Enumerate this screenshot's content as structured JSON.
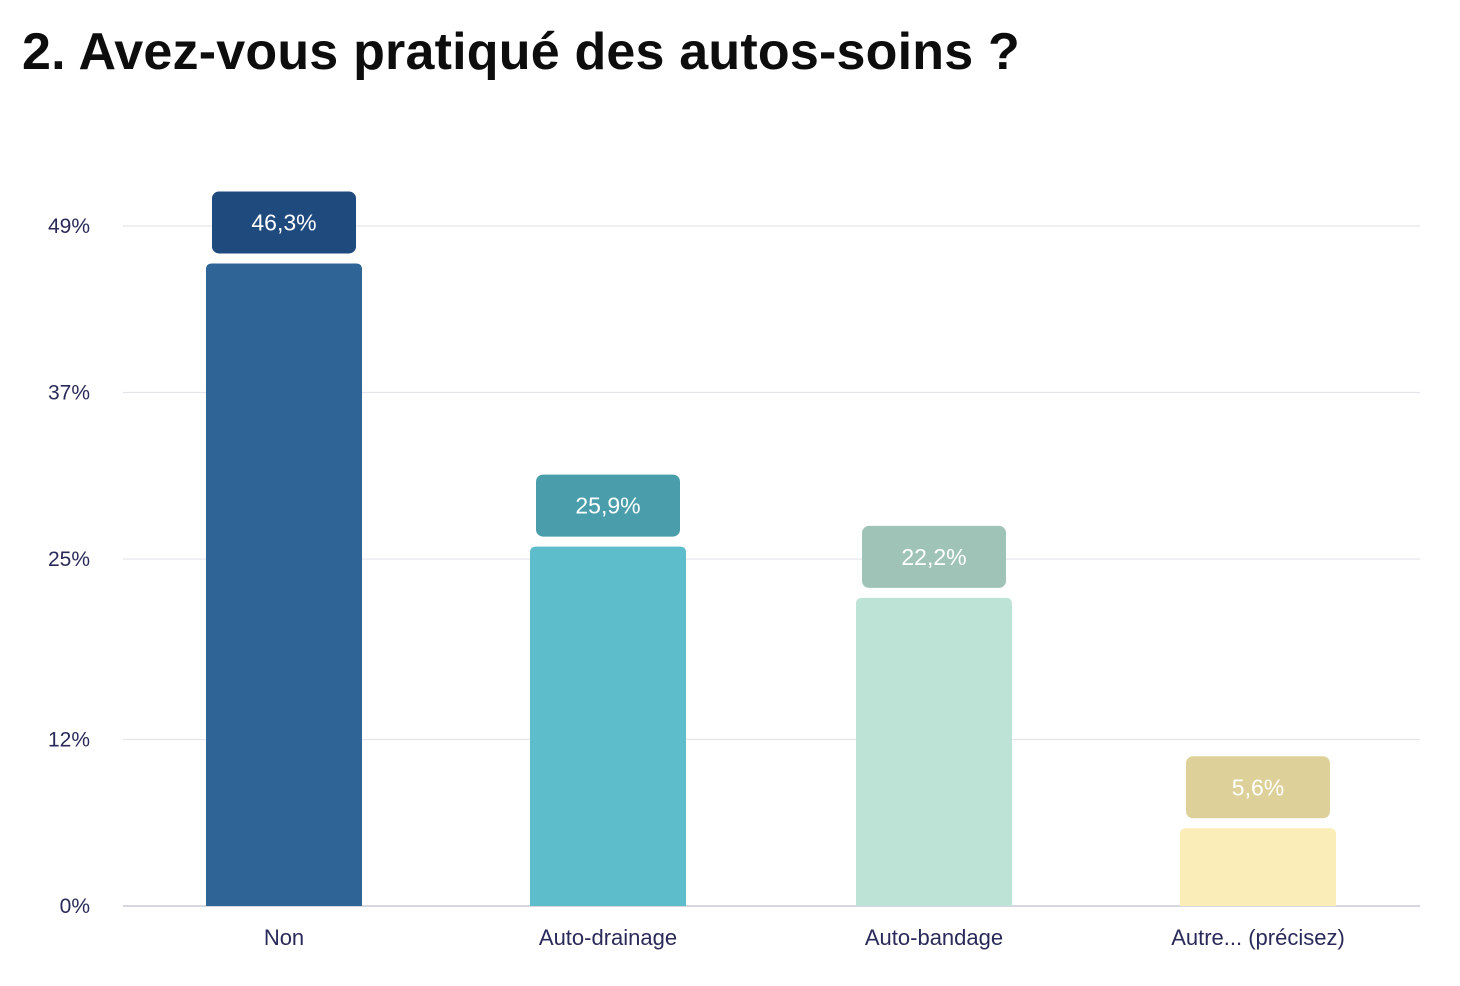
{
  "title": "2. Avez-vous pratiqué des autos-soins ?",
  "chart_data": {
    "type": "bar",
    "title": "2. Avez-vous pratiqué des autos-soins ?",
    "xlabel": "",
    "ylabel": "",
    "categories": [
      "Non",
      "Auto-drainage",
      "Auto-bandage",
      "Autre... (précisez)"
    ],
    "values": [
      46.3,
      25.9,
      22.2,
      5.6
    ],
    "data_labels": [
      "46,3%",
      "25,9%",
      "22,2%",
      "5,6%"
    ],
    "y_ticks": [
      0,
      12,
      25,
      37,
      49
    ],
    "y_tick_labels": [
      "0%",
      "12%",
      "25%",
      "37%",
      "49%"
    ],
    "ylim": [
      0,
      49
    ],
    "grid": true,
    "legend": "none",
    "bar_colors": [
      "#2f6496",
      "#5dbdca",
      "#bde3d7",
      "#faedb8"
    ],
    "label_colors": [
      "#1f4a7e",
      "#4a9eab",
      "#9fc4b7",
      "#ddd199"
    ]
  }
}
